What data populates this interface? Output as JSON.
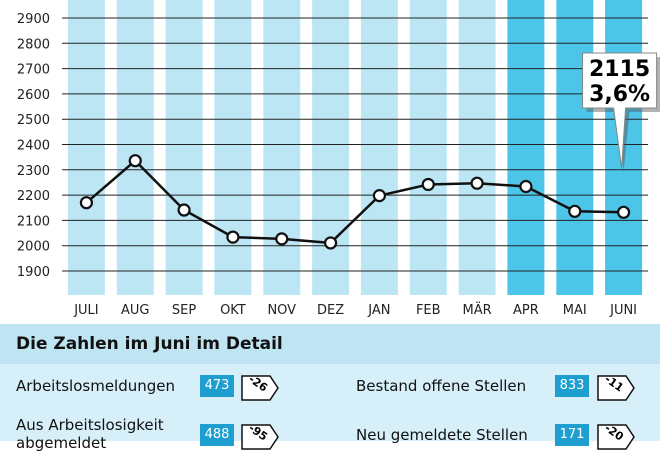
{
  "chart_data": {
    "type": "line",
    "categories": [
      "JULI",
      "AUG",
      "SEP",
      "OKT",
      "NOV",
      "DEZ",
      "JAN",
      "FEB",
      "MÄR",
      "APR",
      "MAI",
      "JUNI"
    ],
    "values": [
      2170,
      2336,
      2141,
      2034,
      2027,
      2011,
      2198,
      2242,
      2247,
      2234,
      2136,
      2132
    ],
    "highlighted_categories": [
      "APR",
      "MAI",
      "JUNI"
    ],
    "yticks": [
      1900,
      2000,
      2100,
      2200,
      2300,
      2400,
      2500,
      2600,
      2700,
      2800,
      2900
    ],
    "ylim": [
      1850,
      2950
    ],
    "grid": true,
    "callout": {
      "value": "2115",
      "percent": "3,6%"
    },
    "colors": {
      "bar": "#bde6f5",
      "bar_highlight": "#4cc5e8",
      "line": "#111111",
      "grid": "#222222"
    }
  },
  "detail": {
    "title": "Die Zahlen im Juni im Detail",
    "left": [
      {
        "label": "Arbeitslosmeldungen",
        "value": "473",
        "delta": "-26"
      },
      {
        "label": "Aus Arbeitslosigkeit",
        "label2": "abgemeldet",
        "value": "488",
        "delta": "-95"
      }
    ],
    "right": [
      {
        "label": "Bestand offene Stellen",
        "value": "833",
        "delta": "-11"
      },
      {
        "label": "Neu gemeldete Stellen",
        "value": "171",
        "delta": "-20"
      }
    ]
  }
}
